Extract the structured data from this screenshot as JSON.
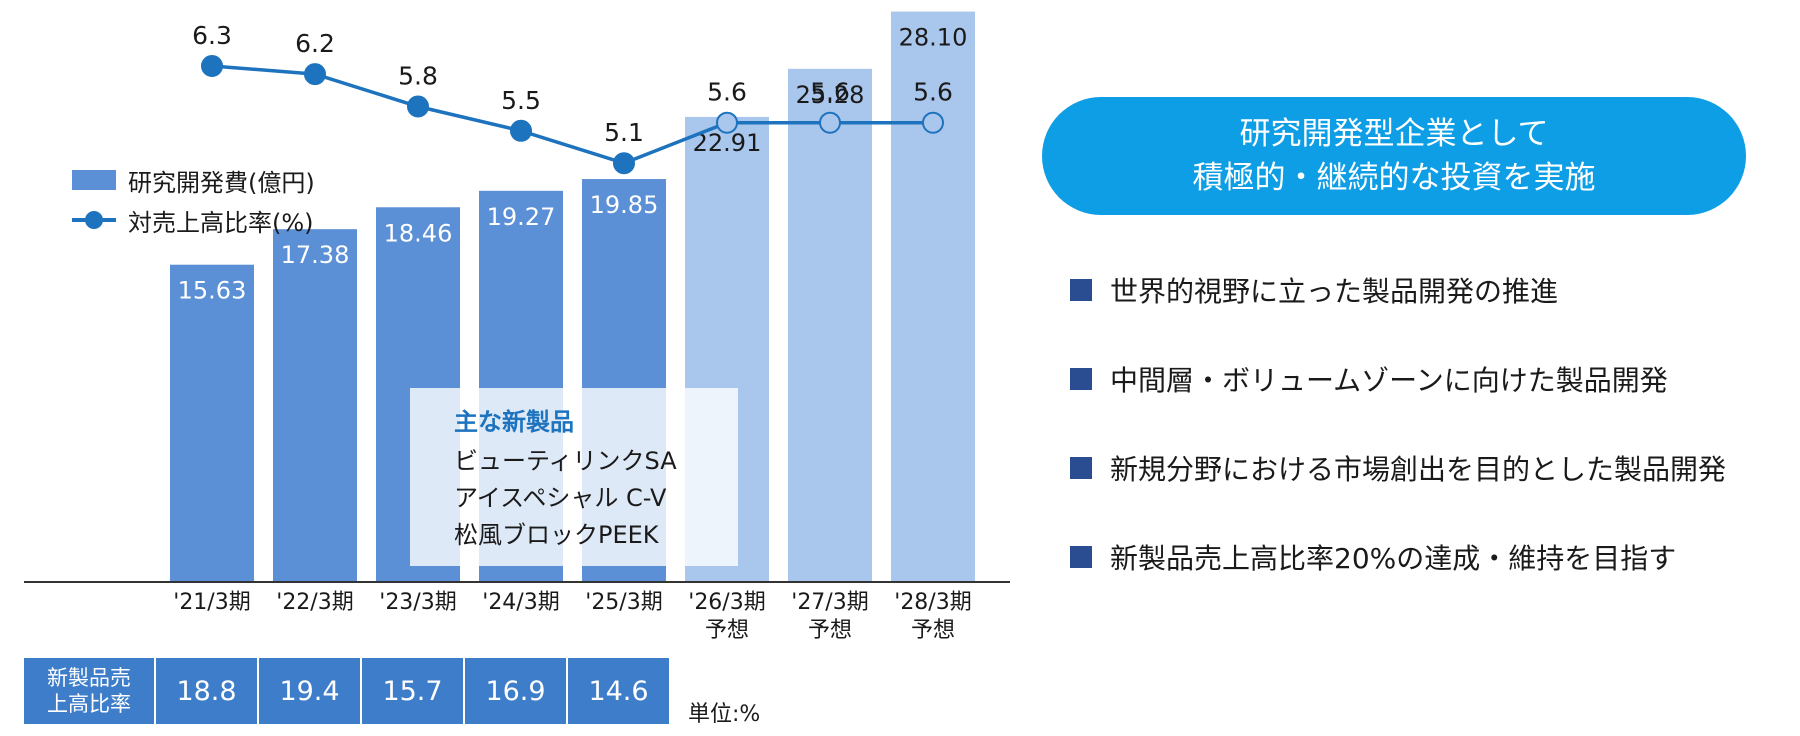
{
  "chart_data": {
    "type": "bar",
    "categories": [
      "'21/3期",
      "'22/3期",
      "'23/3期",
      "'24/3期",
      "'25/3期",
      "'26/3期\n予想",
      "'27/3期\n予想",
      "'28/3期\n予想"
    ],
    "forecast_from_index": 5,
    "series": [
      {
        "name": "研究開発費(億円)",
        "type": "bar",
        "values": [
          15.63,
          17.38,
          18.46,
          19.27,
          19.85,
          22.91,
          25.28,
          28.1
        ],
        "labels": [
          "15.63",
          "17.38",
          "18.46",
          "19.27",
          "19.85",
          "22.91",
          "25.28",
          "28.10"
        ]
      },
      {
        "name": "対売上高比率(%)",
        "type": "line",
        "values": [
          6.3,
          6.2,
          5.8,
          5.5,
          5.1,
          5.6,
          5.6,
          5.6
        ],
        "labels": [
          "6.3",
          "6.2",
          "5.8",
          "5.5",
          "5.1",
          "5.6",
          "5.6",
          "5.6"
        ]
      }
    ],
    "colors": {
      "bar": "#5b8fd6",
      "bar_forecast": "#a9c6ec",
      "line": "#1e73be",
      "marker_forecast": "#a9c6ec",
      "axis": "#333333"
    }
  },
  "legend": {
    "bar_label": "研究開発費(億円)",
    "line_label": "対売上高比率(%)"
  },
  "products": {
    "title": "主な新製品",
    "items": [
      "ビューティリンクSA",
      "アイスペシャル C-V",
      "松風ブロックPEEK"
    ]
  },
  "rate_table": {
    "header": "新製品売\n上高比率",
    "values": [
      "18.8",
      "19.4",
      "15.7",
      "16.9",
      "14.6"
    ],
    "unit": "単位:%"
  },
  "headline": {
    "line1": "研究開発型企業として",
    "line2": "積極的・継続的な投資を実施"
  },
  "bullets": [
    "世界的視野に立った製品開発の推進",
    "中間層・ボリュームゾーンに向けた製品開発",
    "新規分野における市場創出を目的とした製品開発",
    "新製品売上高比率20%の達成・維持を目指す"
  ]
}
